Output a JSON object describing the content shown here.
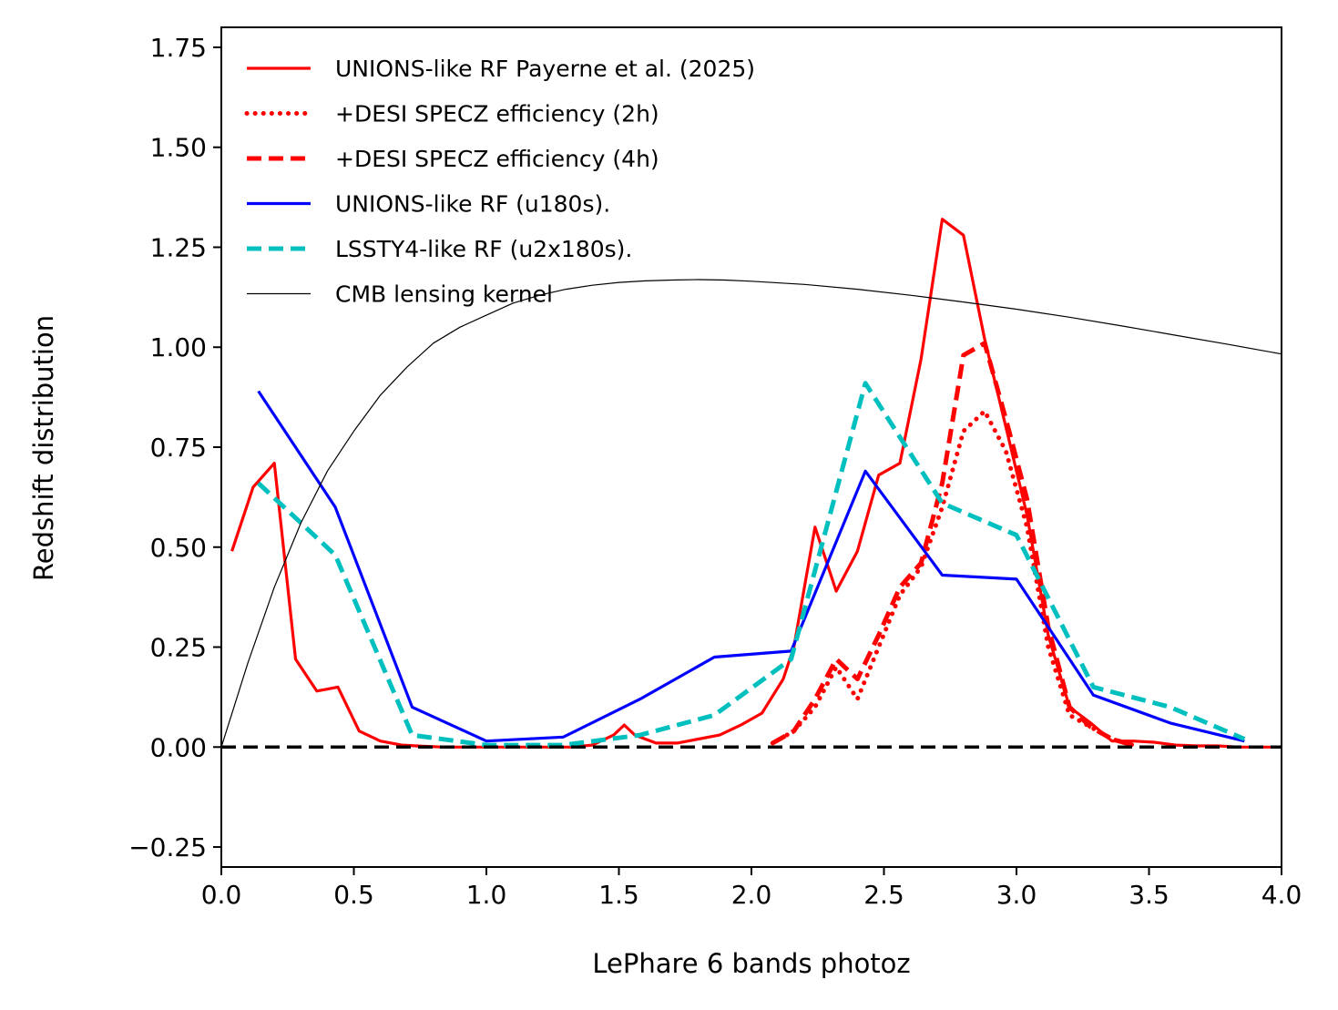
{
  "chart_data": {
    "type": "line",
    "title": "",
    "xlabel": "LePhare 6 bands photoz",
    "ylabel": "Redshift distribution",
    "xlim": [
      0.0,
      4.0
    ],
    "ylim": [
      -0.3,
      1.8
    ],
    "xticks": [
      0.0,
      0.5,
      1.0,
      1.5,
      2.0,
      2.5,
      3.0,
      3.5,
      4.0
    ],
    "xtick_labels": [
      "0.0",
      "0.5",
      "1.0",
      "1.5",
      "2.0",
      "2.5",
      "3.0",
      "3.5",
      "4.0"
    ],
    "yticks": [
      -0.25,
      0.0,
      0.25,
      0.5,
      0.75,
      1.0,
      1.25,
      1.5,
      1.75
    ],
    "ytick_labels": [
      "−0.25",
      "0.00",
      "0.25",
      "0.50",
      "0.75",
      "1.00",
      "1.25",
      "1.50",
      "1.75"
    ],
    "grid": false,
    "legend_position": "top-left",
    "series": [
      {
        "name": "UNIONS-like RF Payerne et al. (2025)",
        "color": "#ff0000",
        "style": "solid",
        "width": "medium",
        "x": [
          0.04,
          0.12,
          0.2,
          0.28,
          0.36,
          0.44,
          0.52,
          0.6,
          0.68,
          0.76,
          0.84,
          0.92,
          1.0,
          1.08,
          1.16,
          1.24,
          1.32,
          1.4,
          1.48,
          1.52,
          1.56,
          1.64,
          1.72,
          1.8,
          1.88,
          1.96,
          2.04,
          2.12,
          2.16,
          2.24,
          2.32,
          2.4,
          2.48,
          2.56,
          2.64,
          2.72,
          2.8,
          2.88,
          2.96,
          3.04,
          3.12,
          3.2,
          3.28,
          3.36,
          3.44,
          3.52,
          3.6,
          3.68,
          3.76,
          3.84,
          3.92,
          4.0
        ],
        "y": [
          0.49,
          0.65,
          0.71,
          0.22,
          0.14,
          0.15,
          0.04,
          0.015,
          0.005,
          0.002,
          0.0,
          0.0,
          0.0,
          0.0,
          0.0,
          0.0,
          0.0,
          0.005,
          0.03,
          0.055,
          0.03,
          0.01,
          0.01,
          0.02,
          0.03,
          0.055,
          0.085,
          0.17,
          0.25,
          0.55,
          0.39,
          0.49,
          0.68,
          0.71,
          0.97,
          1.32,
          1.28,
          1.02,
          0.8,
          0.58,
          0.28,
          0.1,
          0.06,
          0.015,
          0.015,
          0.012,
          0.005,
          0.003,
          0.003,
          0.0,
          0.0,
          0.0
        ]
      },
      {
        "name": "+DESI SPECZ efficiency (2h)",
        "color": "#ff0000",
        "style": "dotted",
        "width": "thick",
        "x": [
          2.08,
          2.16,
          2.24,
          2.32,
          2.4,
          2.48,
          2.56,
          2.64,
          2.72,
          2.8,
          2.88,
          2.96,
          3.04,
          3.12,
          3.2,
          3.28,
          3.36,
          3.44
        ],
        "y": [
          0.01,
          0.04,
          0.1,
          0.2,
          0.12,
          0.25,
          0.38,
          0.45,
          0.6,
          0.79,
          0.84,
          0.74,
          0.55,
          0.25,
          0.08,
          0.05,
          0.02,
          0.005
        ]
      },
      {
        "name": "+DESI SPECZ efficiency (4h)",
        "color": "#ff0000",
        "style": "dashed",
        "width": "thick",
        "x": [
          2.08,
          2.16,
          2.24,
          2.32,
          2.4,
          2.48,
          2.56,
          2.64,
          2.72,
          2.8,
          2.88,
          2.96,
          3.04,
          3.12,
          3.2,
          3.28,
          3.36,
          3.44
        ],
        "y": [
          0.01,
          0.04,
          0.12,
          0.22,
          0.17,
          0.28,
          0.4,
          0.46,
          0.66,
          0.98,
          1.01,
          0.82,
          0.62,
          0.3,
          0.1,
          0.05,
          0.02,
          0.005
        ]
      },
      {
        "name": "UNIONS-like RF (u180s).",
        "color": "#0000ff",
        "style": "solid",
        "width": "medium",
        "x": [
          0.14,
          0.43,
          0.72,
          1.0,
          1.29,
          1.58,
          1.86,
          2.15,
          2.43,
          2.72,
          3.0,
          3.29,
          3.58,
          3.86
        ],
        "y": [
          0.89,
          0.6,
          0.1,
          0.015,
          0.025,
          0.12,
          0.225,
          0.24,
          0.69,
          0.43,
          0.42,
          0.13,
          0.06,
          0.015
        ]
      },
      {
        "name": "LSSTY4-like RF (u2x180s).",
        "color": "#00bfbf",
        "style": "dashed",
        "width": "thick",
        "x": [
          0.14,
          0.43,
          0.72,
          1.0,
          1.29,
          1.58,
          1.86,
          2.15,
          2.43,
          2.72,
          3.0,
          3.29,
          3.58,
          3.86
        ],
        "y": [
          0.66,
          0.48,
          0.03,
          0.005,
          0.005,
          0.03,
          0.08,
          0.22,
          0.91,
          0.61,
          0.53,
          0.15,
          0.1,
          0.02
        ]
      },
      {
        "name": "CMB lensing kernel",
        "color": "#000000",
        "style": "solid",
        "width": "thin",
        "x": [
          0.0,
          0.1,
          0.2,
          0.3,
          0.4,
          0.5,
          0.6,
          0.7,
          0.8,
          0.9,
          1.0,
          1.1,
          1.2,
          1.3,
          1.4,
          1.5,
          1.6,
          1.7,
          1.8,
          1.9,
          2.0,
          2.2,
          2.4,
          2.6,
          2.8,
          3.0,
          3.2,
          3.4,
          3.6,
          3.8,
          4.0
        ],
        "y": [
          0.0,
          0.21,
          0.4,
          0.56,
          0.69,
          0.79,
          0.88,
          0.95,
          1.01,
          1.05,
          1.08,
          1.11,
          1.13,
          1.145,
          1.155,
          1.162,
          1.166,
          1.168,
          1.169,
          1.168,
          1.165,
          1.157,
          1.145,
          1.13,
          1.113,
          1.095,
          1.075,
          1.053,
          1.03,
          1.007,
          0.983
        ]
      }
    ],
    "reference_line": {
      "name": "zero line",
      "y": 0.0,
      "color": "#000000",
      "style": "dashed"
    }
  }
}
